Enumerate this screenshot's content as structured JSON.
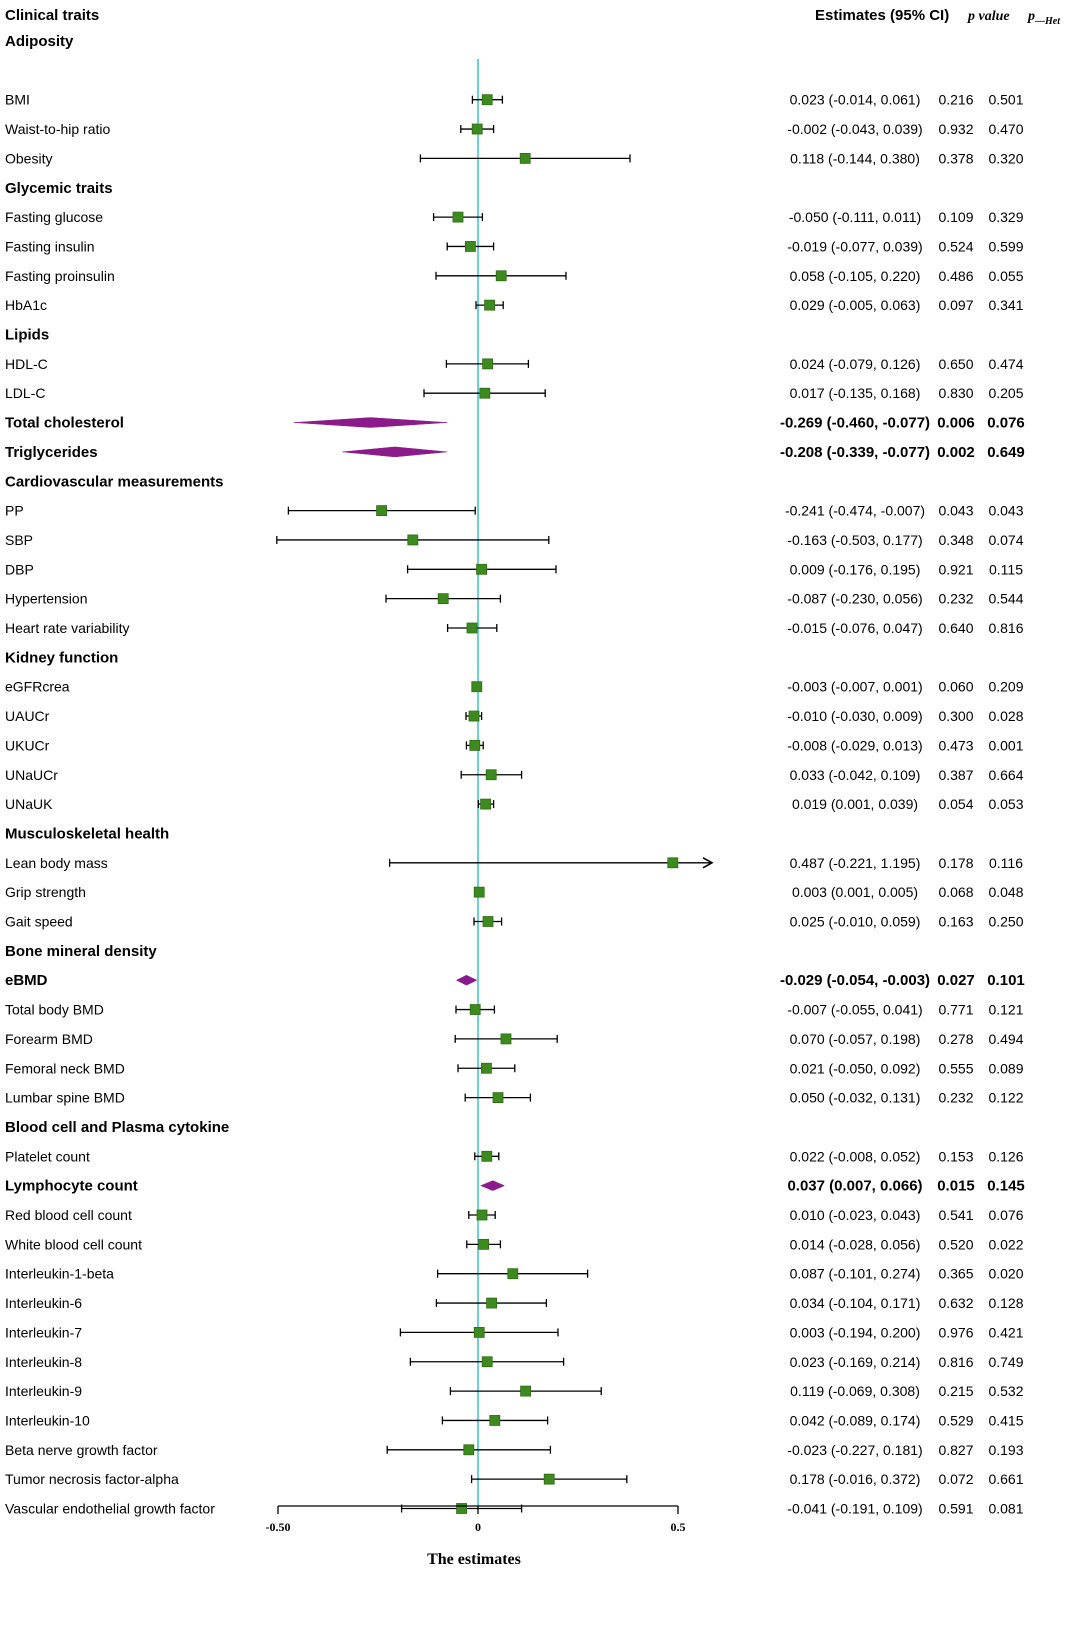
{
  "chart_data": {
    "type": "forest",
    "title": "",
    "xlabel": "The estimates",
    "ylabel": "",
    "xlim": [
      -0.5,
      0.5
    ],
    "xticks": [
      "-0.50",
      "0",
      "0.5"
    ],
    "reference_line": 0,
    "columns": {
      "trait": "Clinical traits",
      "estimate": "Estimates (95% CI)",
      "p": "p value",
      "p_het_base": "p",
      "p_het_sub": "—Het"
    },
    "rows": [
      {
        "kind": "header",
        "label": "Adiposity"
      },
      {
        "kind": "spacer"
      },
      {
        "kind": "item",
        "label": "BMI",
        "est": 0.023,
        "lo": -0.014,
        "hi": 0.061,
        "ci": "0.023 (-0.014, 0.061)",
        "p": "0.216",
        "phet": "0.501"
      },
      {
        "kind": "item",
        "label": "Waist-to-hip ratio",
        "est": -0.002,
        "lo": -0.043,
        "hi": 0.039,
        "ci": "-0.002 (-0.043, 0.039)",
        "p": "0.932",
        "phet": "0.470"
      },
      {
        "kind": "item",
        "label": "Obesity",
        "est": 0.118,
        "lo": -0.144,
        "hi": 0.38,
        "ci": "0.118 (-0.144, 0.380)",
        "p": "0.378",
        "phet": "0.320"
      },
      {
        "kind": "header",
        "label": "Glycemic traits"
      },
      {
        "kind": "item",
        "label": "Fasting glucose",
        "est": -0.05,
        "lo": -0.111,
        "hi": 0.011,
        "ci": "-0.050 (-0.111, 0.011)",
        "p": "0.109",
        "phet": "0.329"
      },
      {
        "kind": "item",
        "label": "Fasting insulin",
        "est": -0.019,
        "lo": -0.077,
        "hi": 0.039,
        "ci": "-0.019 (-0.077, 0.039)",
        "p": "0.524",
        "phet": "0.599"
      },
      {
        "kind": "item",
        "label": "Fasting proinsulin",
        "est": 0.058,
        "lo": -0.105,
        "hi": 0.22,
        "ci": "0.058 (-0.105, 0.220)",
        "p": "0.486",
        "phet": "0.055"
      },
      {
        "kind": "item",
        "label": "HbA1c",
        "est": 0.029,
        "lo": -0.005,
        "hi": 0.063,
        "ci": "0.029 (-0.005, 0.063)",
        "p": "0.097",
        "phet": "0.341"
      },
      {
        "kind": "header",
        "label": "Lipids"
      },
      {
        "kind": "item",
        "label": "HDL-C",
        "est": 0.024,
        "lo": -0.079,
        "hi": 0.126,
        "ci": "0.024 (-0.079, 0.126)",
        "p": "0.650",
        "phet": "0.474"
      },
      {
        "kind": "item",
        "label": "LDL-C",
        "est": 0.017,
        "lo": -0.135,
        "hi": 0.168,
        "ci": "0.017 (-0.135, 0.168)",
        "p": "0.830",
        "phet": "0.205"
      },
      {
        "kind": "sig",
        "label": "Total cholesterol",
        "est": -0.269,
        "lo": -0.46,
        "hi": -0.077,
        "ci": "-0.269 (-0.460, -0.077)",
        "p": "0.006",
        "phet": "0.076"
      },
      {
        "kind": "sig",
        "label": "Triglycerides",
        "est": -0.208,
        "lo": -0.339,
        "hi": -0.077,
        "ci": "-0.208 (-0.339, -0.077)",
        "p": "0.002",
        "phet": "0.649"
      },
      {
        "kind": "header",
        "label": "Cardiovascular measurements"
      },
      {
        "kind": "item",
        "label": "PP",
        "est": -0.241,
        "lo": -0.474,
        "hi": -0.007,
        "ci": "-0.241 (-0.474, -0.007)",
        "p": "0.043",
        "phet": "0.043"
      },
      {
        "kind": "item",
        "label": "SBP",
        "est": -0.163,
        "lo": -0.503,
        "hi": 0.177,
        "ci": "-0.163 (-0.503, 0.177)",
        "p": "0.348",
        "phet": "0.074"
      },
      {
        "kind": "item",
        "label": "DBP",
        "est": 0.009,
        "lo": -0.176,
        "hi": 0.195,
        "ci": "0.009 (-0.176, 0.195)",
        "p": "0.921",
        "phet": "0.115"
      },
      {
        "kind": "item",
        "label": "Hypertension",
        "est": -0.087,
        "lo": -0.23,
        "hi": 0.056,
        "ci": "-0.087 (-0.230, 0.056)",
        "p": "0.232",
        "phet": "0.544"
      },
      {
        "kind": "item",
        "label": "Heart rate variability",
        "est": -0.015,
        "lo": -0.076,
        "hi": 0.047,
        "ci": "-0.015 (-0.076, 0.047)",
        "p": "0.640",
        "phet": "0.816"
      },
      {
        "kind": "header",
        "label": "Kidney function"
      },
      {
        "kind": "item",
        "label": "eGFRcrea",
        "est": -0.003,
        "lo": -0.007,
        "hi": 0.001,
        "ci": "-0.003 (-0.007, 0.001)",
        "p": "0.060",
        "phet": "0.209"
      },
      {
        "kind": "item",
        "label": "UAUCr",
        "est": -0.01,
        "lo": -0.03,
        "hi": 0.009,
        "ci": "-0.010 (-0.030, 0.009)",
        "p": "0.300",
        "phet": "0.028"
      },
      {
        "kind": "item",
        "label": "UKUCr",
        "est": -0.008,
        "lo": -0.029,
        "hi": 0.013,
        "ci": "-0.008 (-0.029, 0.013)",
        "p": "0.473",
        "phet": "0.001"
      },
      {
        "kind": "item",
        "label": "UNaUCr",
        "est": 0.033,
        "lo": -0.042,
        "hi": 0.109,
        "ci": "0.033 (-0.042, 0.109)",
        "p": "0.387",
        "phet": "0.664"
      },
      {
        "kind": "item",
        "label": "UNaUK",
        "est": 0.019,
        "lo": 0.001,
        "hi": 0.039,
        "ci": "0.019 (0.001, 0.039)",
        "p": "0.054",
        "phet": "0.053"
      },
      {
        "kind": "header",
        "label": "Musculoskeletal  health"
      },
      {
        "kind": "item",
        "label": "Lean body mass",
        "est": 0.487,
        "lo": -0.221,
        "hi": 1.195,
        "ci": "0.487 (-0.221, 1.195)",
        "p": "0.178",
        "phet": "0.116",
        "arrow": true
      },
      {
        "kind": "item",
        "label": "Grip strength",
        "est": 0.003,
        "lo": 0.001,
        "hi": 0.005,
        "ci": "0.003 (0.001, 0.005)",
        "p": "0.068",
        "phet": "0.048"
      },
      {
        "kind": "item",
        "label": "Gait speed",
        "est": 0.025,
        "lo": -0.01,
        "hi": 0.059,
        "ci": "0.025 (-0.010, 0.059)",
        "p": "0.163",
        "phet": "0.250"
      },
      {
        "kind": "header",
        "label": "Bone mineral density"
      },
      {
        "kind": "sig",
        "label": "eBMD",
        "est": -0.029,
        "lo": -0.054,
        "hi": -0.003,
        "ci": "-0.029 (-0.054, -0.003)",
        "p": "0.027",
        "phet": "0.101"
      },
      {
        "kind": "item",
        "label": "Total body BMD",
        "est": -0.007,
        "lo": -0.055,
        "hi": 0.041,
        "ci": "-0.007 (-0.055, 0.041)",
        "p": "0.771",
        "phet": "0.121"
      },
      {
        "kind": "item",
        "label": "Forearm BMD",
        "est": 0.07,
        "lo": -0.057,
        "hi": 0.198,
        "ci": "0.070 (-0.057, 0.198)",
        "p": "0.278",
        "phet": "0.494"
      },
      {
        "kind": "item",
        "label": "Femoral neck BMD",
        "est": 0.021,
        "lo": -0.05,
        "hi": 0.092,
        "ci": "0.021 (-0.050, 0.092)",
        "p": "0.555",
        "phet": "0.089"
      },
      {
        "kind": "item",
        "label": "Lumbar spine BMD",
        "est": 0.05,
        "lo": -0.032,
        "hi": 0.131,
        "ci": "0.050 (-0.032, 0.131)",
        "p": "0.232",
        "phet": "0.122"
      },
      {
        "kind": "header",
        "label": "Blood cell and Plasma cytokine"
      },
      {
        "kind": "item",
        "label": "Platelet count",
        "est": 0.022,
        "lo": -0.008,
        "hi": 0.052,
        "ci": "0.022 (-0.008, 0.052)",
        "p": "0.153",
        "phet": "0.126"
      },
      {
        "kind": "sig",
        "label": "Lymphocyte count",
        "est": 0.037,
        "lo": 0.007,
        "hi": 0.066,
        "ci": "0.037 (0.007, 0.066)",
        "p": "0.015",
        "phet": "0.145"
      },
      {
        "kind": "item",
        "label": "Red blood cell count",
        "est": 0.01,
        "lo": -0.023,
        "hi": 0.043,
        "ci": "0.010 (-0.023, 0.043)",
        "p": "0.541",
        "phet": "0.076"
      },
      {
        "kind": "item",
        "label": "White blood cell count",
        "est": 0.014,
        "lo": -0.028,
        "hi": 0.056,
        "ci": "0.014 (-0.028, 0.056)",
        "p": "0.520",
        "phet": "0.022"
      },
      {
        "kind": "item",
        "label": "Interleukin-1-beta",
        "est": 0.087,
        "lo": -0.101,
        "hi": 0.274,
        "ci": "0.087 (-0.101, 0.274)",
        "p": "0.365",
        "phet": "0.020"
      },
      {
        "kind": "item",
        "label": "Interleukin-6",
        "est": 0.034,
        "lo": -0.104,
        "hi": 0.171,
        "ci": "0.034 (-0.104, 0.171)",
        "p": "0.632",
        "phet": "0.128"
      },
      {
        "kind": "item",
        "label": "Interleukin-7",
        "est": 0.003,
        "lo": -0.194,
        "hi": 0.2,
        "ci": "0.003 (-0.194, 0.200)",
        "p": "0.976",
        "phet": "0.421"
      },
      {
        "kind": "item",
        "label": "Interleukin-8",
        "est": 0.023,
        "lo": -0.169,
        "hi": 0.214,
        "ci": "0.023 (-0.169, 0.214)",
        "p": "0.816",
        "phet": "0.749"
      },
      {
        "kind": "item",
        "label": "Interleukin-9",
        "est": 0.119,
        "lo": -0.069,
        "hi": 0.308,
        "ci": "0.119 (-0.069, 0.308)",
        "p": "0.215",
        "phet": "0.532"
      },
      {
        "kind": "item",
        "label": "Interleukin-10",
        "est": 0.042,
        "lo": -0.089,
        "hi": 0.174,
        "ci": "0.042 (-0.089, 0.174)",
        "p": "0.529",
        "phet": "0.415"
      },
      {
        "kind": "item",
        "label": "Beta nerve growth factor",
        "est": -0.023,
        "lo": -0.227,
        "hi": 0.181,
        "ci": "-0.023 (-0.227, 0.181)",
        "p": "0.827",
        "phet": "0.193"
      },
      {
        "kind": "item",
        "label": "Tumor necrosis factor-alpha",
        "est": 0.178,
        "lo": -0.016,
        "hi": 0.372,
        "ci": "0.178 (-0.016, 0.372)",
        "p": "0.072",
        "phet": "0.661"
      },
      {
        "kind": "item",
        "label": "Vascular endothelial growth factor",
        "est": -0.041,
        "lo": -0.191,
        "hi": 0.109,
        "ci": "-0.041 (-0.191, 0.109)",
        "p": "0.591",
        "phet": "0.081"
      }
    ],
    "colors": {
      "marker": "#3d8a1f",
      "marker_stroke": "#2f6b15",
      "diamond": "#8b1a8b",
      "reference_line": "#4cc3c9",
      "axis": "#000000"
    }
  }
}
